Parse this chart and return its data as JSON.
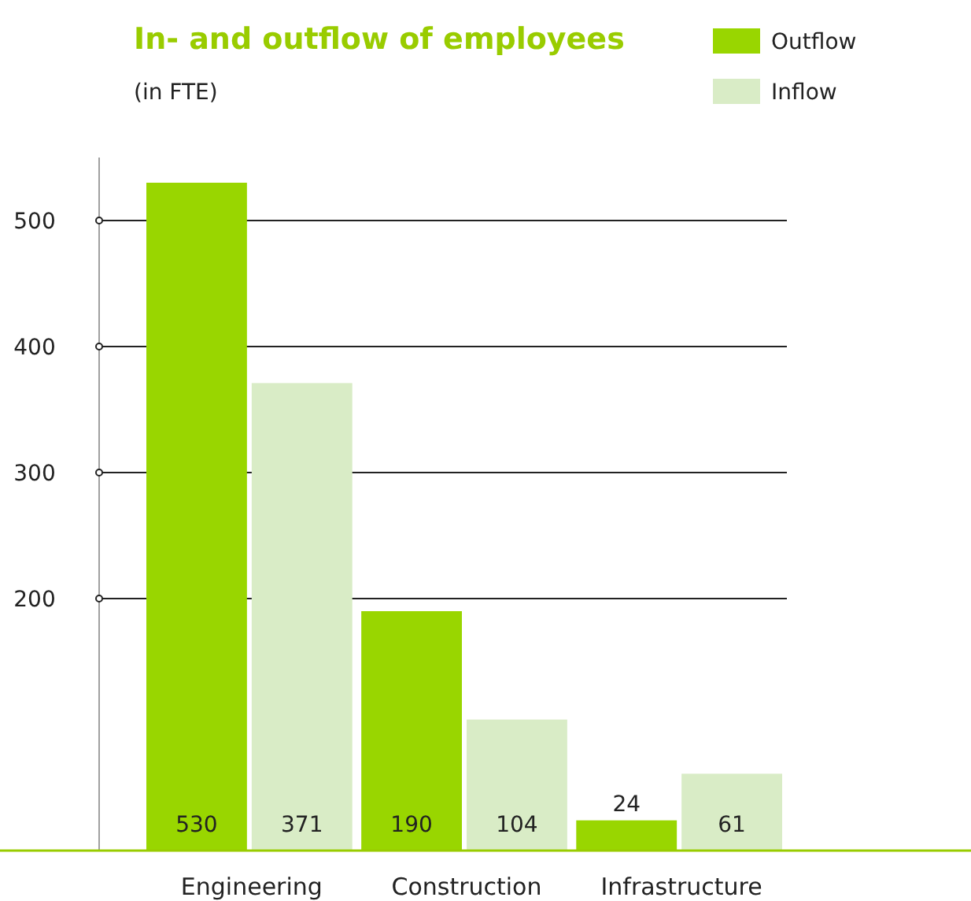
{
  "chart_data": {
    "type": "bar",
    "title": "In- and outflow of employees",
    "subtitle": "(in FTE)",
    "categories": [
      "Engineering",
      "Construction",
      "Infrastructure"
    ],
    "series": [
      {
        "name": "Outflow",
        "color": "#99d600",
        "values": [
          530,
          190,
          24
        ]
      },
      {
        "name": "Inflow",
        "color": "#d9ecc6",
        "values": [
          371,
          104,
          61
        ]
      }
    ],
    "ylim": [
      0,
      550
    ],
    "yticks": [
      200,
      300,
      400,
      500
    ],
    "grid": "y",
    "legend": "top right",
    "data_labels": true
  }
}
